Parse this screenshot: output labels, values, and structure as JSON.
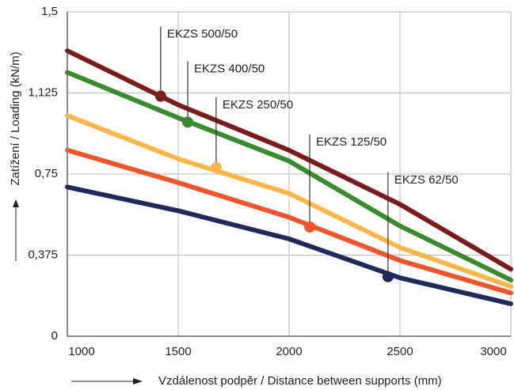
{
  "chart_data": {
    "type": "line",
    "ylabel": "Zatížení / Loading (kN/m)",
    "xlabel": "Vzdálenost podpěr / Distance between supports (mm)",
    "x": [
      1000,
      1500,
      2000,
      2500,
      3000
    ],
    "xlim": [
      1000,
      3000
    ],
    "xticks": [
      1000,
      1500,
      2000,
      2500,
      3000
    ],
    "ylim": [
      0,
      1.5
    ],
    "yticks": [
      0,
      {
        "value": 0.375,
        "label": "0,375"
      },
      {
        "value": 0.75,
        "label": "0,75"
      },
      {
        "value": 1.125,
        "label": "1,125"
      },
      {
        "value": 1.5,
        "label": "1,5"
      }
    ],
    "grid": true,
    "series": [
      {
        "name": "EKZS 500/50",
        "color": "#7b1c1c",
        "values": [
          1.32,
          1.07,
          0.86,
          0.61,
          0.31
        ],
        "marker": {
          "x": 1421,
          "y": 1.11
        }
      },
      {
        "name": "EKZS 400/50",
        "color": "#3a8a2e",
        "values": [
          1.22,
          1.01,
          0.81,
          0.51,
          0.26
        ],
        "marker": {
          "x": 1543,
          "y": 0.99
        }
      },
      {
        "name": "EKZS 250/50",
        "color": "#fbb84a",
        "values": [
          1.02,
          0.82,
          0.66,
          0.41,
          0.23
        ],
        "marker": {
          "x": 1671,
          "y": 0.78
        }
      },
      {
        "name": "EKZS 125/50",
        "color": "#f2552a",
        "values": [
          0.86,
          0.71,
          0.55,
          0.35,
          0.2
        ],
        "marker": {
          "x": 2093,
          "y": 0.505
        }
      },
      {
        "name": "EKZS 62/50",
        "color": "#1f2a5a",
        "values": [
          0.69,
          0.58,
          0.45,
          0.27,
          0.15
        ],
        "marker": {
          "x": 2446,
          "y": 0.275
        }
      }
    ]
  }
}
